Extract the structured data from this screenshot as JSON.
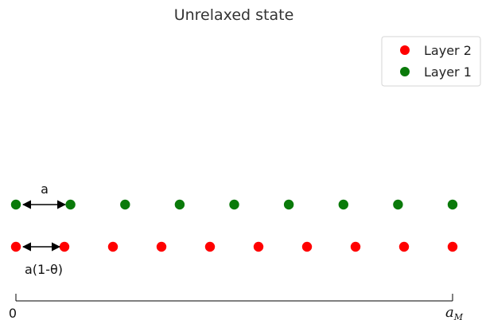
{
  "title": "Unrelaxed state",
  "legend": {
    "items": [
      {
        "label": "Layer 2",
        "color": "#ff0000"
      },
      {
        "label": "Layer 1",
        "color": "#0a7a0a"
      }
    ]
  },
  "annotations": {
    "layer1_spacing": "a",
    "layer2_spacing": "a(1-θ)"
  },
  "axis": {
    "start_label": "0",
    "end_label_main": "a",
    "end_label_sub": "M"
  },
  "chart_data": {
    "type": "scatter",
    "series": [
      {
        "name": "Layer 1",
        "color": "#0a7a0a",
        "count": 9
      },
      {
        "name": "Layer 2",
        "color": "#ff0000",
        "count": 10
      }
    ]
  }
}
